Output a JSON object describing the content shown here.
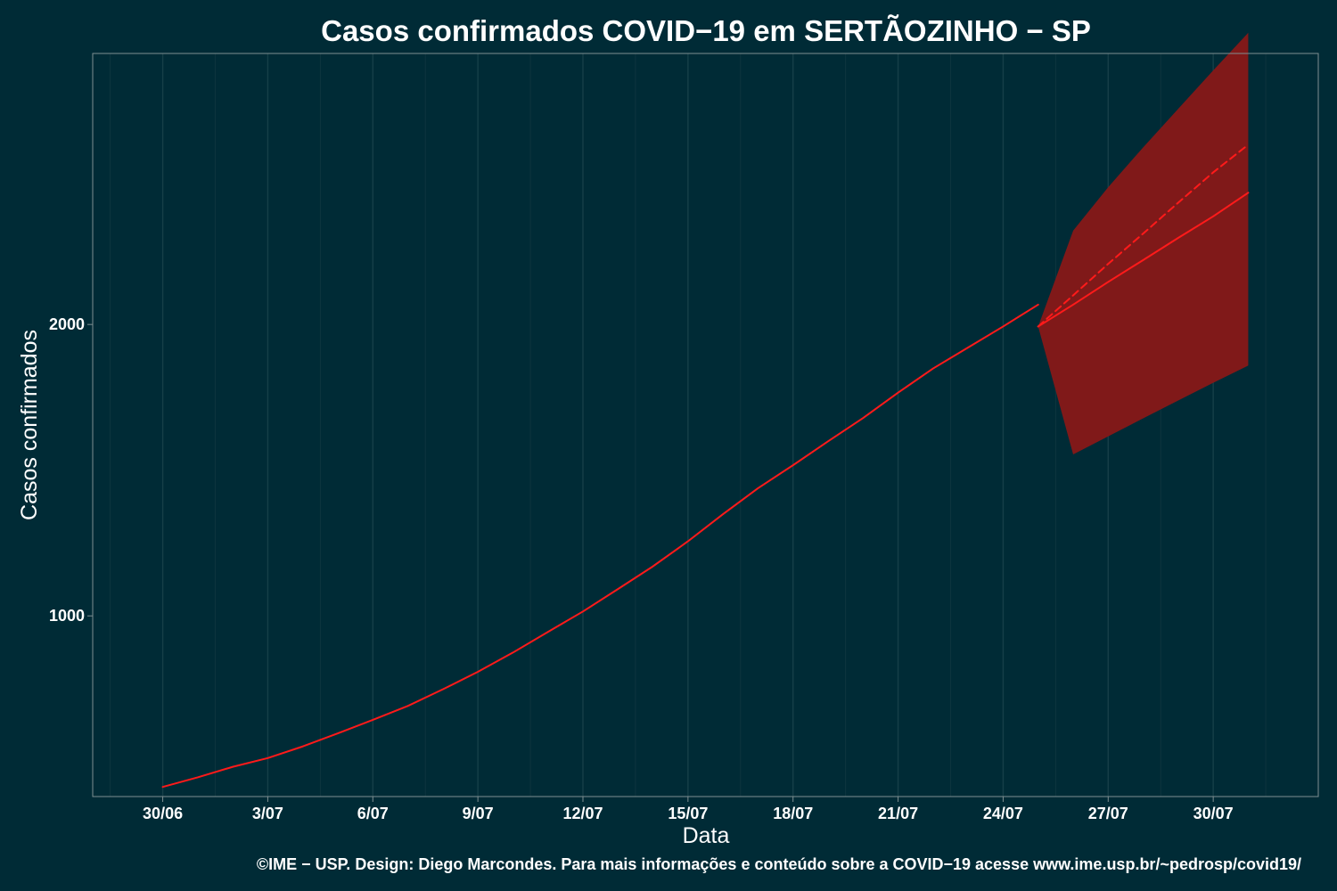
{
  "chart_data": {
    "type": "line",
    "title": "Casos confirmados COVID−19 em SERTÃOZINHO − SP",
    "xlabel": "Data",
    "ylabel": "Casos confirmados",
    "caption": "©IME − USP. Design: Diego Marcondes. Para mais informações e conteúdo sobre a COVID−19 acesse www.ime.usp.br/~pedrosp/covid19/",
    "x_tick_labels": [
      "30/06",
      "3/07",
      "6/07",
      "9/07",
      "12/07",
      "15/07",
      "18/07",
      "21/07",
      "24/07",
      "27/07",
      "30/07"
    ],
    "x_tick_dates": [
      "2020-06-30",
      "2020-07-03",
      "2020-07-06",
      "2020-07-09",
      "2020-07-12",
      "2020-07-15",
      "2020-07-18",
      "2020-07-21",
      "2020-07-24",
      "2020-07-27",
      "2020-07-30"
    ],
    "y_ticks": [
      1000,
      2000
    ],
    "y_tick_labels": [
      "1000",
      "2000"
    ],
    "xlim": [
      "2020-06-28",
      "2020-08-02"
    ],
    "ylim": [
      380,
      2930
    ],
    "grid": true,
    "colors": {
      "background": "#002b36",
      "line": "#ff1a1a",
      "band": "#801919"
    },
    "series": [
      {
        "style": "solid",
        "x": [
          "2020-06-30",
          "2020-07-01",
          "2020-07-02",
          "2020-07-03",
          "2020-07-04",
          "2020-07-05",
          "2020-07-06",
          "2020-07-07",
          "2020-07-08",
          "2020-07-09",
          "2020-07-10",
          "2020-07-11",
          "2020-07-12",
          "2020-07-13",
          "2020-07-14",
          "2020-07-15",
          "2020-07-16",
          "2020-07-17",
          "2020-07-18",
          "2020-07-19",
          "2020-07-20",
          "2020-07-21",
          "2020-07-22",
          "2020-07-23",
          "2020-07-24",
          "2020-07-25"
        ],
        "y": [
          413,
          446,
          482,
          512,
          552,
          597,
          643,
          691,
          748,
          808,
          874,
          945,
          1015,
          1092,
          1170,
          1256,
          1349,
          1438,
          1517,
          1599,
          1679,
          1766,
          1849,
          1921,
          1993,
          2068
        ]
      },
      {
        "style": "solid",
        "x": [
          "2020-07-25",
          "2020-07-26",
          "2020-07-27",
          "2020-07-28",
          "2020-07-29",
          "2020-07-30",
          "2020-07-31"
        ],
        "y": [
          1993,
          2068,
          2146,
          2221,
          2297,
          2371,
          2452
        ]
      },
      {
        "style": "dashed",
        "x": [
          "2020-07-25",
          "2020-07-26",
          "2020-07-27",
          "2020-07-28",
          "2020-07-29",
          "2020-07-30",
          "2020-07-31"
        ],
        "y": [
          1993,
          2100,
          2208,
          2312,
          2418,
          2522,
          2617
        ]
      }
    ],
    "band": {
      "x": [
        "2020-07-25",
        "2020-07-26",
        "2020-07-27",
        "2020-07-28",
        "2020-07-29",
        "2020-07-30",
        "2020-07-31"
      ],
      "lower": [
        1993,
        1554,
        1616,
        1678,
        1739,
        1800,
        1859
      ],
      "upper": [
        1993,
        2322,
        2471,
        2608,
        2740,
        2872,
        3001
      ]
    }
  }
}
